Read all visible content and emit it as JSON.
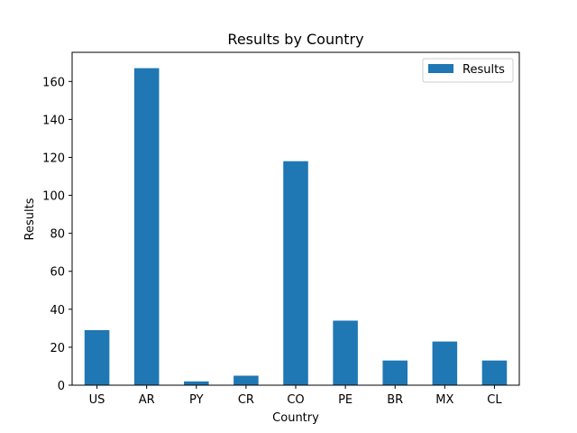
{
  "chart_data": {
    "type": "bar",
    "title": "Results by Country",
    "xlabel": "Country",
    "ylabel": "Results",
    "categories": [
      "US",
      "AR",
      "PY",
      "CR",
      "CO",
      "PE",
      "BR",
      "MX",
      "CL"
    ],
    "series": [
      {
        "name": "Results",
        "color": "#1f77b4",
        "values": [
          29,
          167,
          2,
          5,
          118,
          34,
          13,
          23,
          13
        ]
      }
    ],
    "ylim": [
      0,
      175.35
    ],
    "yticks": [
      "0",
      "20",
      "40",
      "60",
      "80",
      "100",
      "120",
      "140",
      "160"
    ],
    "legend": "top-right",
    "grid": false
  }
}
